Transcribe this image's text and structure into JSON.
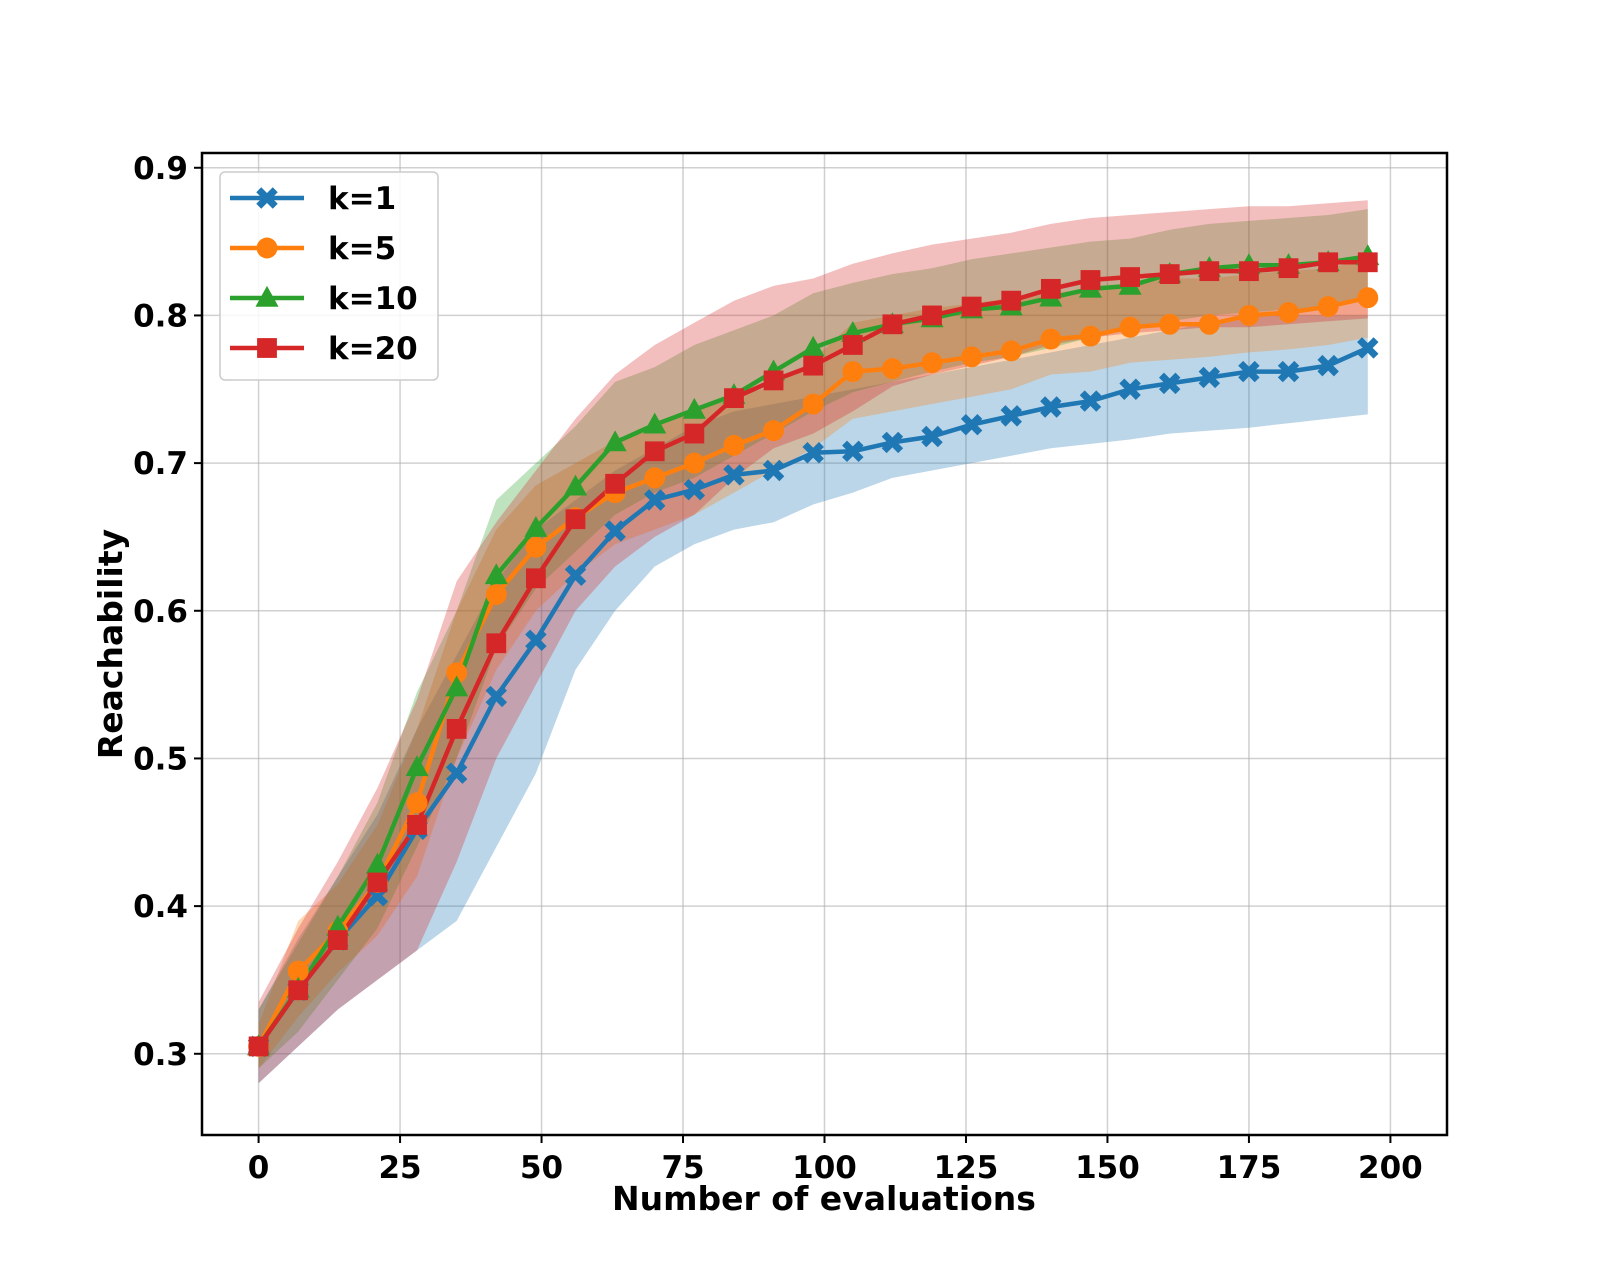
{
  "chart_data": {
    "type": "line",
    "title": "",
    "xlabel": "Number of evaluations",
    "ylabel": "Reachability",
    "xlim": [
      -10,
      210
    ],
    "ylim": [
      0.245,
      0.91
    ],
    "xticks": [
      0,
      25,
      50,
      75,
      100,
      125,
      150,
      175,
      200
    ],
    "yticks": [
      0.3,
      0.4,
      0.5,
      0.6,
      0.7,
      0.8,
      0.9
    ],
    "ytick_labels": [
      "0.3",
      "0.4",
      "0.5",
      "0.6",
      "0.7",
      "0.8",
      "0.9"
    ],
    "grid": true,
    "legend_position": "upper-left",
    "x": [
      0,
      7,
      14,
      21,
      28,
      35,
      42,
      49,
      56,
      63,
      70,
      77,
      84,
      91,
      98,
      105,
      112,
      119,
      126,
      133,
      140,
      147,
      154,
      161,
      168,
      175,
      182,
      189,
      196
    ],
    "series": [
      {
        "name": "k=1",
        "color": "#1f77b4",
        "marker": "x",
        "values": [
          0.305,
          0.343,
          0.377,
          0.407,
          0.452,
          0.49,
          0.542,
          0.58,
          0.624,
          0.654,
          0.675,
          0.682,
          0.692,
          0.695,
          0.707,
          0.708,
          0.714,
          0.718,
          0.726,
          0.732,
          0.738,
          0.742,
          0.75,
          0.754,
          0.758,
          0.762,
          0.762,
          0.766,
          0.778
        ],
        "lower": [
          0.28,
          0.305,
          0.33,
          0.35,
          0.37,
          0.39,
          0.44,
          0.49,
          0.56,
          0.6,
          0.63,
          0.645,
          0.655,
          0.66,
          0.672,
          0.68,
          0.69,
          0.695,
          0.7,
          0.705,
          0.71,
          0.713,
          0.716,
          0.72,
          0.722,
          0.724,
          0.727,
          0.73,
          0.733
        ],
        "upper": [
          0.33,
          0.378,
          0.42,
          0.462,
          0.52,
          0.57,
          0.62,
          0.655,
          0.675,
          0.695,
          0.71,
          0.725,
          0.735,
          0.74,
          0.745,
          0.75,
          0.755,
          0.76,
          0.765,
          0.77,
          0.775,
          0.78,
          0.785,
          0.79,
          0.795,
          0.8,
          0.8,
          0.8,
          0.8
        ]
      },
      {
        "name": "k=5",
        "color": "#ff7f0e",
        "marker": "o",
        "values": [
          0.305,
          0.356,
          0.383,
          0.416,
          0.47,
          0.558,
          0.611,
          0.643,
          0.663,
          0.68,
          0.69,
          0.7,
          0.712,
          0.722,
          0.74,
          0.762,
          0.764,
          0.768,
          0.772,
          0.776,
          0.784,
          0.786,
          0.792,
          0.794,
          0.794,
          0.8,
          0.802,
          0.806,
          0.812
        ]
      },
      {
        "name": "k=10",
        "color": "#2ca02c",
        "marker": "^",
        "values": [
          0.305,
          0.344,
          0.386,
          0.428,
          0.494,
          0.548,
          0.624,
          0.656,
          0.684,
          0.714,
          0.726,
          0.736,
          0.746,
          0.762,
          0.778,
          0.788,
          0.794,
          0.798,
          0.804,
          0.806,
          0.812,
          0.818,
          0.82,
          0.828,
          0.832,
          0.834,
          0.834,
          0.836,
          0.84
        ]
      },
      {
        "name": "k=20",
        "color": "#d62728",
        "marker": "s",
        "values": [
          0.305,
          0.343,
          0.377,
          0.416,
          0.455,
          0.52,
          0.578,
          0.622,
          0.662,
          0.686,
          0.708,
          0.72,
          0.744,
          0.756,
          0.766,
          0.78,
          0.794,
          0.8,
          0.806,
          0.81,
          0.818,
          0.824,
          0.826,
          0.828,
          0.83,
          0.83,
          0.832,
          0.836,
          0.836
        ]
      }
    ],
    "bands": {
      "k=5": {
        "lower": [
          0.29,
          0.325,
          0.355,
          0.38,
          0.42,
          0.5,
          0.56,
          0.6,
          0.625,
          0.645,
          0.655,
          0.665,
          0.68,
          0.695,
          0.71,
          0.73,
          0.735,
          0.74,
          0.745,
          0.75,
          0.76,
          0.762,
          0.768,
          0.77,
          0.772,
          0.775,
          0.777,
          0.78,
          0.785
        ],
        "upper": [
          0.32,
          0.39,
          0.415,
          0.455,
          0.52,
          0.6,
          0.655,
          0.685,
          0.7,
          0.715,
          0.725,
          0.735,
          0.745,
          0.752,
          0.77,
          0.795,
          0.8,
          0.805,
          0.808,
          0.812,
          0.815,
          0.818,
          0.822,
          0.825,
          0.825,
          0.828,
          0.83,
          0.832,
          0.838
        ]
      },
      "k=10": {
        "lower": [
          0.29,
          0.315,
          0.35,
          0.385,
          0.44,
          0.5,
          0.575,
          0.615,
          0.64,
          0.665,
          0.68,
          0.69,
          0.705,
          0.72,
          0.735,
          0.748,
          0.755,
          0.762,
          0.768,
          0.772,
          0.778,
          0.785,
          0.79,
          0.796,
          0.8,
          0.802,
          0.804,
          0.806,
          0.81
        ],
        "upper": [
          0.33,
          0.375,
          0.42,
          0.47,
          0.545,
          0.6,
          0.675,
          0.7,
          0.725,
          0.755,
          0.765,
          0.78,
          0.79,
          0.8,
          0.815,
          0.822,
          0.828,
          0.832,
          0.838,
          0.842,
          0.846,
          0.85,
          0.852,
          0.858,
          0.862,
          0.864,
          0.866,
          0.868,
          0.872
        ]
      },
      "k=20": {
        "lower": [
          0.28,
          0.305,
          0.33,
          0.35,
          0.37,
          0.43,
          0.5,
          0.55,
          0.6,
          0.63,
          0.65,
          0.665,
          0.69,
          0.71,
          0.72,
          0.735,
          0.752,
          0.76,
          0.766,
          0.772,
          0.78,
          0.785,
          0.788,
          0.79,
          0.792,
          0.792,
          0.794,
          0.796,
          0.798
        ],
        "upper": [
          0.335,
          0.385,
          0.43,
          0.48,
          0.54,
          0.62,
          0.66,
          0.695,
          0.73,
          0.76,
          0.78,
          0.795,
          0.81,
          0.82,
          0.825,
          0.835,
          0.842,
          0.848,
          0.852,
          0.856,
          0.862,
          0.866,
          0.868,
          0.87,
          0.872,
          0.874,
          0.874,
          0.876,
          0.878
        ]
      }
    }
  }
}
